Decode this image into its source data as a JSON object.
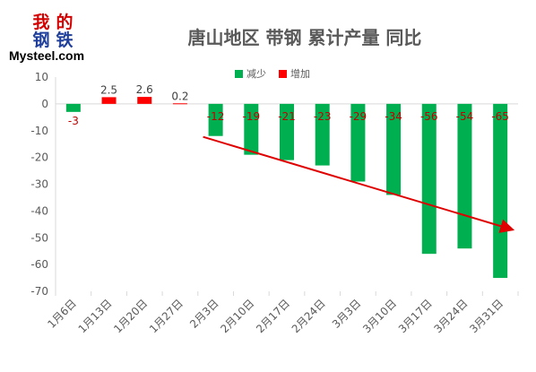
{
  "logo": {
    "chars": [
      "我",
      "的",
      "钢",
      "铁"
    ],
    "text": "Mysteel.com"
  },
  "legend": {
    "decrease_label": "减少",
    "increase_label": "增加"
  },
  "colors": {
    "decrease": "#00b050",
    "increase": "#ff0000",
    "label": "#c00000",
    "trend_arrow": "#e00000",
    "axis_text": "#595959"
  },
  "chart_data": {
    "type": "bar",
    "title": "唐山地区 带钢 累计产量 同比",
    "categories": [
      "1月6日",
      "1月13日",
      "1月20日",
      "1月27日",
      "2月3日",
      "2月10日",
      "2月17日",
      "2月24日",
      "3月3日",
      "3月10日",
      "3月17日",
      "3月24日",
      "3月31日"
    ],
    "values": [
      -3,
      2.5,
      2.6,
      0.2,
      -12,
      -19,
      -21,
      -23,
      -29,
      -34,
      -56,
      -54,
      -65
    ],
    "data_labels": [
      "-3",
      "2.5",
      "2.6",
      "0.2",
      "-12",
      "-19",
      "-21",
      "-23",
      "-29",
      "-34",
      "-56",
      "-54",
      "-65"
    ],
    "ylim": [
      -70,
      10
    ],
    "yticks": [
      10,
      0,
      -10,
      -20,
      -30,
      -40,
      -50,
      -60,
      -70
    ],
    "xlabel": "",
    "ylabel": "",
    "grid": false,
    "legend_position": "top",
    "series": [
      {
        "name": "减少",
        "color": "#00b050"
      },
      {
        "name": "增加",
        "color": "#ff0000"
      }
    ],
    "annotations": [
      {
        "type": "trend-arrow",
        "from": {
          "x": "2月3日",
          "y": -12
        },
        "to": {
          "x": "3月31日",
          "y": -47
        }
      }
    ]
  }
}
